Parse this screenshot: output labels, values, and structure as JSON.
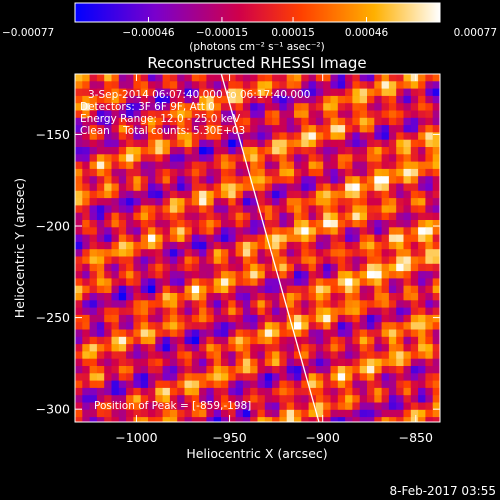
{
  "chart_data": {
    "type": "heatmap",
    "title": "Reconstructed RHESSI Image",
    "xlabel": "Heliocentric X (arcsec)",
    "ylabel": "Heliocentric Y (arcsec)",
    "xlim": [
      -1033,
      -837
    ],
    "ylim": [
      -307,
      -117
    ],
    "x_ticks": [
      {
        "value": -1000,
        "label": "−1000"
      },
      {
        "value": -950,
        "label": "−950"
      },
      {
        "value": -900,
        "label": "−900"
      },
      {
        "value": -850,
        "label": "−850"
      }
    ],
    "y_ticks": [
      {
        "value": -150,
        "label": "−150"
      },
      {
        "value": -200,
        "label": "−200"
      },
      {
        "value": -250,
        "label": "−250"
      },
      {
        "value": -300,
        "label": "−300"
      }
    ],
    "colorbar": {
      "min": -0.00077,
      "max": 0.00077,
      "ticks": [
        {
          "value": -0.00077,
          "label": "−0.00077"
        },
        {
          "value": -0.00046,
          "label": "−0.00046"
        },
        {
          "value": -0.00015,
          "label": "−0.00015"
        },
        {
          "value": 0.00015,
          "label": "0.00015"
        },
        {
          "value": 0.00046,
          "label": "0.00046"
        },
        {
          "value": 0.00077,
          "label": "0.00077"
        }
      ],
      "unit": "(photons cm⁻² s⁻¹ asec⁻²)",
      "colors": [
        "#0000ff",
        "#7a00cc",
        "#d0004a",
        "#ff4000",
        "#ffb000",
        "#ffffff"
      ]
    },
    "annotations": [
      "3-Sep-2014 06:07:40.000 to 06:17:40.000",
      "Detectors: 3F 6F 9F, Att 0",
      "Energy Range: 12.0 - 25.0 keV",
      "Clean    Total counts: 5.30E+03"
    ],
    "peak_label": "Position of Peak = [-859,-198]",
    "peak_position": [
      -859,
      -198
    ],
    "limb_line": [
      [
        -955,
        -115
      ],
      [
        -902,
        -307
      ]
    ],
    "timestamp": "8-Feb-2017 03:55"
  }
}
